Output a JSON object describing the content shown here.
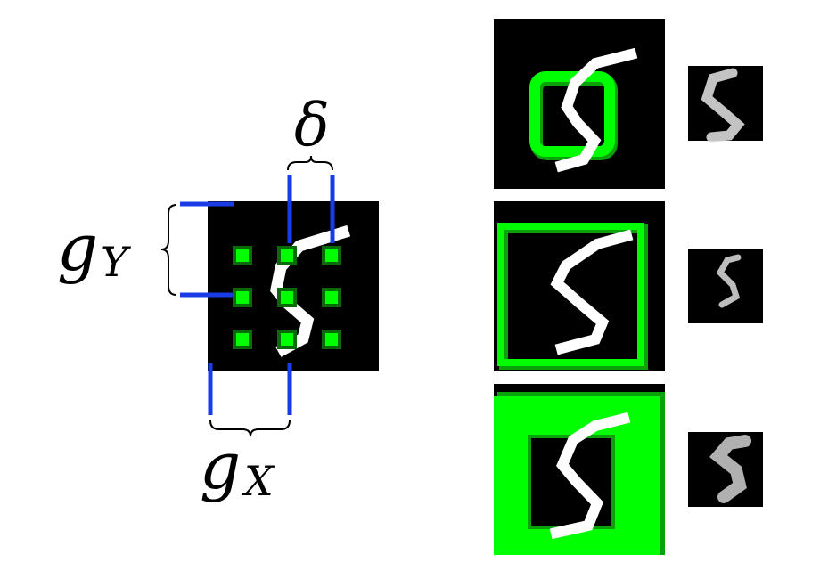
{
  "labels": {
    "delta": "δ",
    "g_y_base": "g",
    "g_y_sub": "Y",
    "g_x_base": "g",
    "g_x_sub": "X"
  },
  "colors": {
    "background": "#ffffff",
    "canvas": "#000000",
    "digit": "#ffffff",
    "glimpse_green": "#00ff00",
    "glimpse_green_shadow": "#0aa10a",
    "guide_blue": "#1a3ce6",
    "annotation": "#000000"
  },
  "panels": [
    {
      "id": "panel-1",
      "description_icon": "digit-five"
    },
    {
      "id": "panel-2",
      "description_icon": "digit-five"
    },
    {
      "id": "panel-3",
      "description_icon": "digit-five"
    }
  ],
  "grid": {
    "rows": 3,
    "cols": 3
  }
}
